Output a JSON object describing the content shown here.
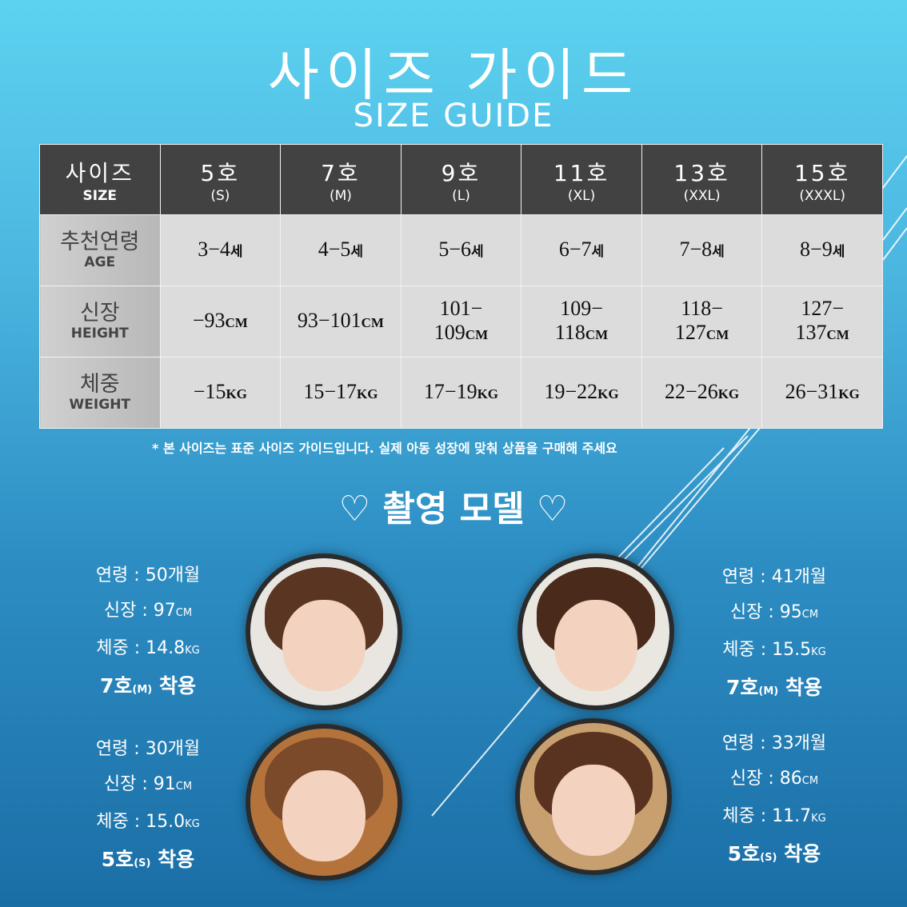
{
  "title": "사이즈 가이드",
  "subtitle": "SIZE GUIDE",
  "table": {
    "corner": {
      "ko": "사이즈",
      "en": "SIZE"
    },
    "sizes": [
      {
        "ko": "5호",
        "en": "(S)"
      },
      {
        "ko": "7호",
        "en": "(M)"
      },
      {
        "ko": "9호",
        "en": "(L)"
      },
      {
        "ko": "11호",
        "en": "(XL)"
      },
      {
        "ko": "13호",
        "en": "(XXL)"
      },
      {
        "ko": "15호",
        "en": "(XXXL)"
      }
    ],
    "rows": [
      {
        "ko": "추천연령",
        "en": "AGE",
        "unit": "세",
        "values": [
          "3−4",
          "4−5",
          "5−6",
          "6−7",
          "7−8",
          "8−9"
        ]
      },
      {
        "ko": "신장",
        "en": "HEIGHT",
        "unit": "CM",
        "values": [
          "−93",
          "93−101",
          "101−\n109",
          "109−\n118",
          "118−\n127",
          "127−\n137"
        ]
      },
      {
        "ko": "체중",
        "en": "WEIGHT",
        "unit": "KG",
        "values": [
          "−15",
          "15−17",
          "17−19",
          "19−22",
          "22−26",
          "26−31"
        ]
      }
    ]
  },
  "note": "* 본 사이즈는 표준 사이즈 가이드입니다. 실제 아동 성장에 맞춰 상품을 구매해 주세요",
  "models_title": "♡ 촬영 모델 ♡",
  "models": [
    {
      "age": "연령 : 50개월",
      "height": "신장 : 97",
      "height_unit": "CM",
      "weight": "체중 : 14.8",
      "weight_unit": "KG",
      "size": "7호",
      "size_sub": "(M)",
      "wear": "착용"
    },
    {
      "age": "연령 : 41개월",
      "height": "신장 : 95",
      "height_unit": "CM",
      "weight": "체중 : 15.5",
      "weight_unit": "KG",
      "size": "7호",
      "size_sub": "(M)",
      "wear": "착용"
    },
    {
      "age": "연령 : 30개월",
      "height": "신장 : 91",
      "height_unit": "CM",
      "weight": "체중 : 15.0",
      "weight_unit": "KG",
      "size": "5호",
      "size_sub": "(S)",
      "wear": "착용"
    },
    {
      "age": "연령 : 33개월",
      "height": "신장 : 86",
      "height_unit": "CM",
      "weight": "체중 : 11.7",
      "weight_unit": "KG",
      "size": "5호",
      "size_sub": "(S)",
      "wear": "착용"
    }
  ]
}
